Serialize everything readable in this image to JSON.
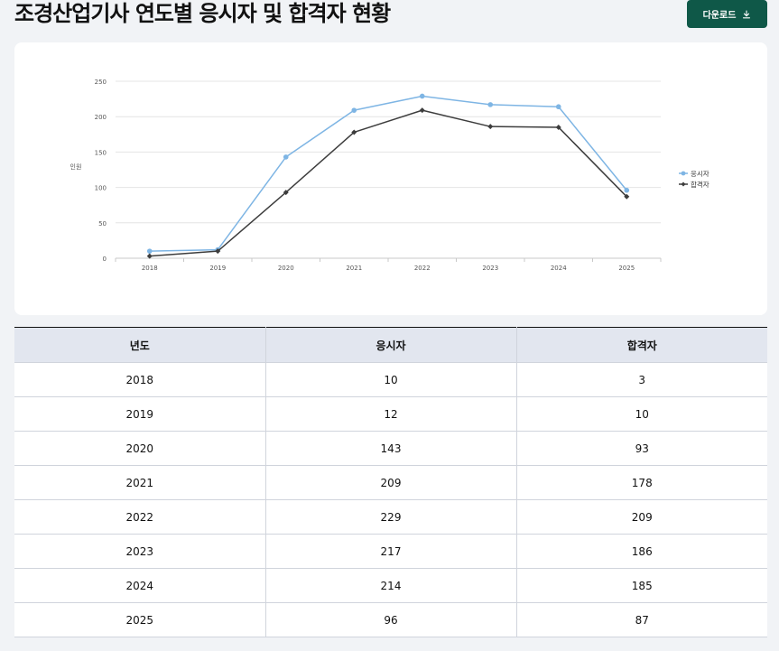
{
  "header": {
    "title": "조경산업기사 연도별 응시자 및 합격자 현황",
    "download_label": "다운로드"
  },
  "chart_data": {
    "type": "line",
    "title": "",
    "ylabel": "인원",
    "xlabel": "",
    "ylim": [
      0,
      250
    ],
    "yticks": [
      0,
      50,
      100,
      150,
      200,
      250
    ],
    "categories": [
      "2018",
      "2019",
      "2020",
      "2021",
      "2022",
      "2023",
      "2024",
      "2025"
    ],
    "series": [
      {
        "name": "응시자",
        "color": "#7eb5e4",
        "marker": "circle",
        "values": [
          10,
          12,
          143,
          209,
          229,
          217,
          214,
          96
        ]
      },
      {
        "name": "합격자",
        "color": "#3d3d3d",
        "marker": "diamond",
        "values": [
          3,
          10,
          93,
          178,
          209,
          186,
          185,
          87
        ]
      }
    ],
    "grid": true,
    "legend": "right"
  },
  "table": {
    "headers": [
      "년도",
      "응시자",
      "합격자"
    ],
    "rows": [
      [
        "2018",
        "10",
        "3"
      ],
      [
        "2019",
        "12",
        "10"
      ],
      [
        "2020",
        "143",
        "93"
      ],
      [
        "2021",
        "209",
        "178"
      ],
      [
        "2022",
        "229",
        "209"
      ],
      [
        "2023",
        "217",
        "186"
      ],
      [
        "2024",
        "214",
        "185"
      ],
      [
        "2025",
        "96",
        "87"
      ]
    ]
  }
}
